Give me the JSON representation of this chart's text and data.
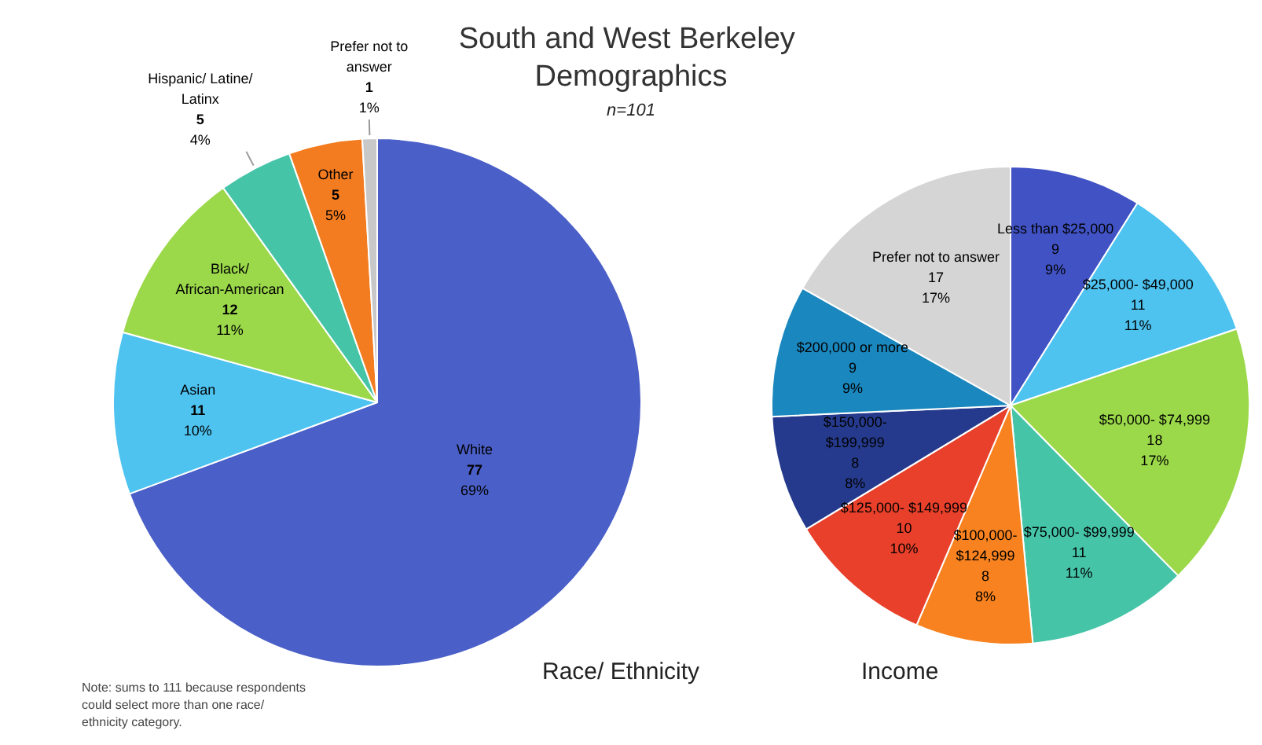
{
  "chart_data": [
    {
      "type": "pie",
      "title": "South and West Berkeley Demographics",
      "subtitle": "n=101",
      "xlabel": "Race/ Ethnicity",
      "annotations": [
        "Note: sums to 111 because respondents could select more than one race/ ethnicity category."
      ],
      "categories": [
        "White",
        "Asian",
        "Black/ African-American",
        "Hispanic/ Latine/ Latinx",
        "Other",
        "Prefer not to answer"
      ],
      "values": [
        77,
        11,
        12,
        5,
        5,
        1
      ],
      "value_labels": [
        "77\n69%",
        "11\n10%",
        "12\n11%",
        "5\n4%",
        "5\n5%",
        "1\n1%"
      ],
      "colors": [
        "#4a5fc7",
        "#4ec3f0",
        "#9bd94a",
        "#45c4a8",
        "#f47c20",
        "#c8c8c8"
      ]
    },
    {
      "type": "pie",
      "xlabel": "Income",
      "categories": [
        "Less than $25,000",
        "$25,000- $49,000",
        "$50,000- $74,999",
        "$75,000- $99,999",
        "$100,000- $124,999",
        "$125,000- $149,999",
        "$150,000- $199,999",
        "$200,000 or more",
        "Prefer not to answer"
      ],
      "values": [
        9,
        11,
        18,
        11,
        8,
        10,
        8,
        9,
        17
      ],
      "value_labels": [
        "9\n9%",
        "11\n11%",
        "18\n17%",
        "11\n11%",
        "8\n8%",
        "10\n10%",
        "8\n8%",
        "9\n9%",
        "17\n17%"
      ],
      "colors": [
        "#4052c4",
        "#4ec3f0",
        "#9bd94a",
        "#45c4a8",
        "#f7821f",
        "#e8402a",
        "#253a8c",
        "#1a87be",
        "#d5d5d5"
      ]
    }
  ]
}
